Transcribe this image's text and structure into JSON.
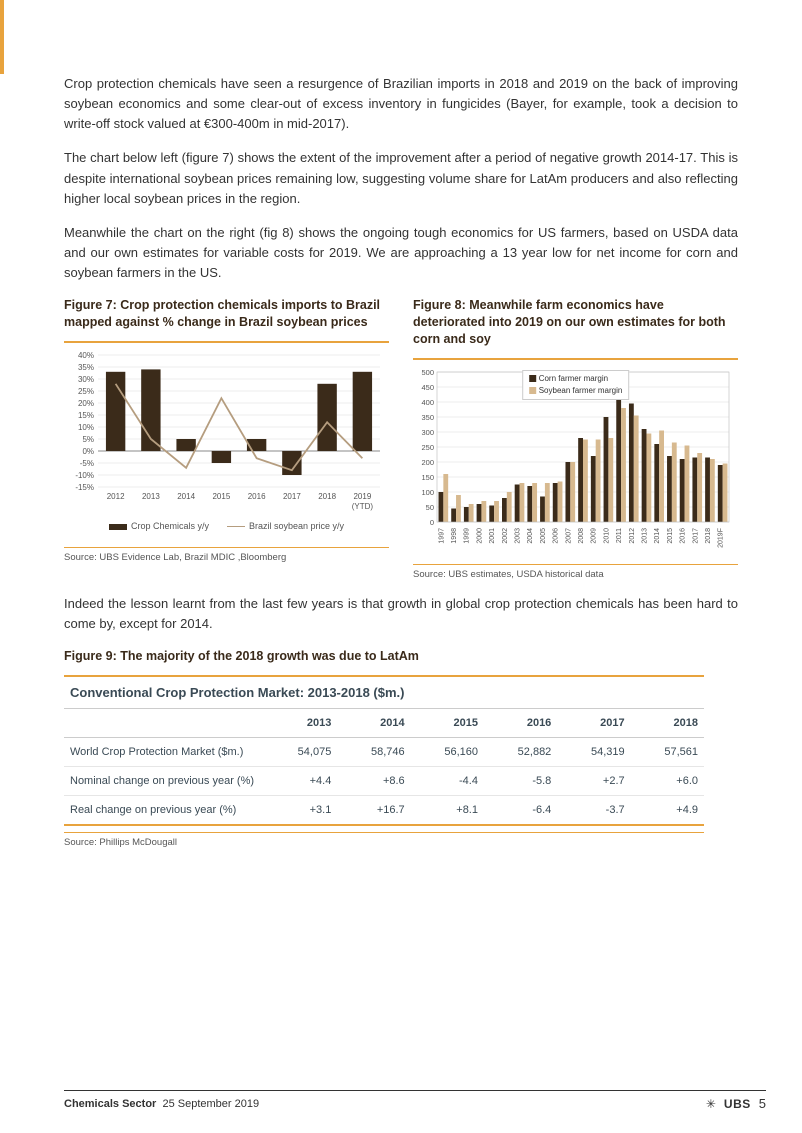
{
  "accent_color": "#e8a33d",
  "text_color": "#333333",
  "paragraphs": {
    "p1": "Crop protection chemicals have seen a resurgence of Brazilian imports in 2018 and 2019 on the back of improving soybean economics and some clear-out of excess inventory in fungicides (Bayer, for example, took a decision to write-off stock valued at €300-400m in mid-2017).",
    "p2": "The chart below left (figure 7) shows the extent of the improvement after a period of negative growth 2014-17. This is despite international soybean prices remaining low, suggesting volume share for LatAm producers and also reflecting higher local soybean prices in the region.",
    "p3": "Meanwhile the chart on the right (fig 8) shows the ongoing tough economics for US farmers, based on USDA data and our own estimates for variable costs for 2019. We are approaching a 13 year low for net income for corn and soybean farmers in the US.",
    "p4": "Indeed the lesson learnt from the last few years is that growth in global crop protection chemicals has been hard to come by, except for 2014."
  },
  "figure7": {
    "title": "Figure 7: Crop protection chemicals imports to Brazil mapped against % change in Brazil soybean prices",
    "type": "bar+line",
    "categories": [
      "2012",
      "2013",
      "2014",
      "2015",
      "2016",
      "2017",
      "2018",
      "2019 (YTD)"
    ],
    "bar_values": [
      33,
      34,
      5,
      -5,
      5,
      -10,
      28,
      33
    ],
    "line_values": [
      28,
      5,
      -7,
      22,
      -3,
      -8,
      12,
      -3
    ],
    "bar_color": "#3b2b1a",
    "line_color": "#b59d7f",
    "ylim": [
      -15,
      40
    ],
    "ytick_step": 5,
    "ytick_suffix": "%",
    "background_color": "#ffffff",
    "grid_color": "#d9d9d9",
    "legend": {
      "bar": "Crop Chemicals y/y",
      "line": "Brazil soybean price y/y"
    },
    "source": "Source: UBS Evidence Lab, Brazil MDIC ,Bloomberg",
    "bar_width": 0.55
  },
  "figure8": {
    "title": "Figure 8: Meanwhile farm economics have deteriorated into 2019 on our own estimates for both corn and soy",
    "type": "grouped-bar",
    "categories": [
      "1997",
      "1998",
      "1999",
      "2000",
      "2001",
      "2002",
      "2003",
      "2004",
      "2005",
      "2006",
      "2007",
      "2008",
      "2009",
      "2010",
      "2011",
      "2012",
      "2013",
      "2014",
      "2015",
      "2016",
      "2017",
      "2018",
      "2019F"
    ],
    "series": [
      {
        "name": "Corn farmer margin",
        "color": "#3b2b1a",
        "values": [
          100,
          45,
          50,
          60,
          55,
          80,
          125,
          120,
          85,
          130,
          200,
          280,
          220,
          350,
          445,
          395,
          310,
          260,
          220,
          210,
          215,
          215,
          190
        ]
      },
      {
        "name": "Soybean farmer margin",
        "color": "#d7b98f",
        "values": [
          160,
          90,
          60,
          70,
          70,
          100,
          130,
          130,
          130,
          135,
          200,
          275,
          275,
          280,
          380,
          355,
          295,
          305,
          265,
          255,
          230,
          210,
          195
        ]
      }
    ],
    "ylim": [
      0,
      500
    ],
    "ytick_step": 50,
    "background_color": "#ffffff",
    "grid_color": "#d9d9d9",
    "source": "Source:  UBS estimates, USDA historical data",
    "bar_width": 0.38
  },
  "figure9": {
    "title": "Figure 9: The majority of the 2018 growth was due to LatAm",
    "table_title": "Conventional Crop Protection Market: 2013-2018 ($m.)",
    "columns": [
      "",
      "2013",
      "2014",
      "2015",
      "2016",
      "2017",
      "2018"
    ],
    "rows": [
      [
        "World Crop Protection Market ($m.)",
        "54,075",
        "58,746",
        "56,160",
        "52,882",
        "54,319",
        "57,561"
      ],
      [
        "Nominal change on previous year (%)",
        "+4.4",
        "+8.6",
        "-4.4",
        "-5.8",
        "+2.7",
        "+6.0"
      ],
      [
        "Real change on previous year (%)",
        "+3.1",
        "+16.7",
        "+8.1",
        "-6.4",
        "-3.7",
        "+4.9"
      ]
    ],
    "source": "Source:  Phillips McDougall",
    "header_color": "#3a4a55",
    "accent_color": "#e8a33d"
  },
  "footer": {
    "sector": "Chemicals Sector",
    "date": "25 September 2019",
    "brand": "UBS",
    "page": "5"
  }
}
